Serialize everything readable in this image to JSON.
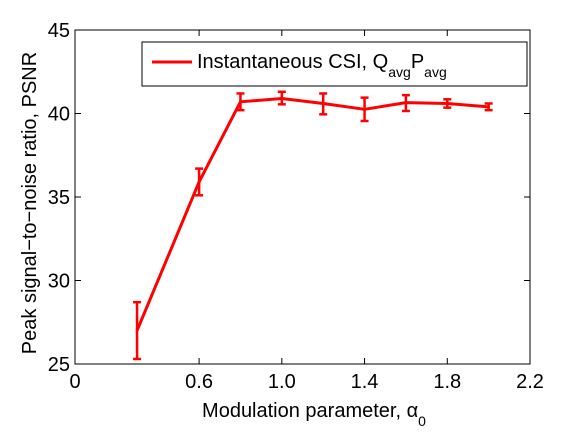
{
  "chart_data": {
    "type": "line",
    "xlabel": "Modulation parameter, α",
    "xlabel_subscript": "0",
    "ylabel": "Peak signal−to−noise ratio, PSNR",
    "xlim": [
      0,
      2.2
    ],
    "ylim": [
      25,
      45
    ],
    "x_ticks": [
      0,
      0.6,
      1.0,
      1.4,
      1.8,
      2.2
    ],
    "x_tick_labels": [
      "0",
      "0.6",
      "1.0",
      "1.4",
      "1.8",
      "2.2"
    ],
    "y_ticks": [
      25,
      30,
      35,
      40,
      45
    ],
    "y_tick_labels": [
      "25",
      "30",
      "35",
      "40",
      "45"
    ],
    "grid": false,
    "legend_position": "top-right",
    "series": [
      {
        "legend_main": "Instantaneous CSI, Q",
        "legend_sub1": "avg",
        "legend_mid": "P",
        "legend_sub2": "avg",
        "color": "#ff0000",
        "x": [
          0.3,
          0.6,
          0.8,
          1.0,
          1.2,
          1.4,
          1.6,
          1.8,
          2.0
        ],
        "y": [
          27.0,
          35.9,
          40.7,
          40.9,
          40.6,
          40.25,
          40.65,
          40.6,
          40.4
        ],
        "err_low": [
          25.3,
          35.1,
          40.2,
          40.55,
          39.95,
          39.55,
          40.15,
          40.35,
          40.2
        ],
        "err_high": [
          28.7,
          36.7,
          41.2,
          41.3,
          41.2,
          40.95,
          41.1,
          40.85,
          40.6
        ]
      }
    ]
  }
}
